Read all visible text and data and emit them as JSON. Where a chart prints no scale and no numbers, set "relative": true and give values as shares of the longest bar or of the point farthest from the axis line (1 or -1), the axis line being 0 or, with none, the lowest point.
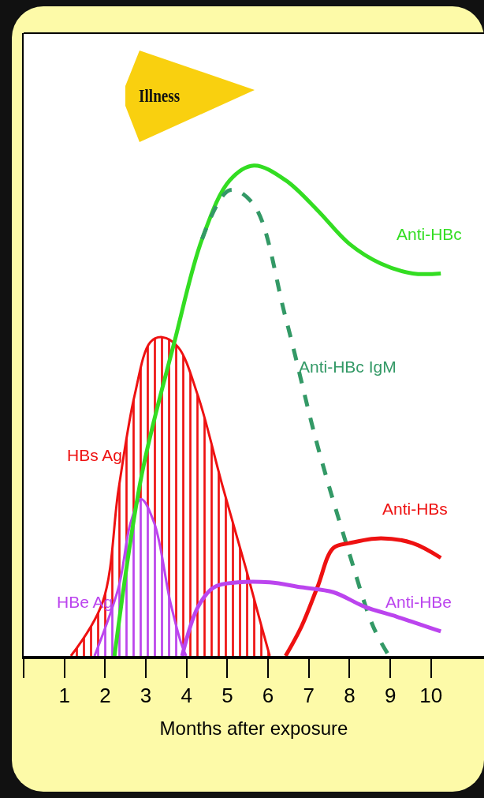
{
  "chart_data": {
    "type": "line",
    "relative": true,
    "xlabel": "Months after exposure",
    "xlim": [
      0,
      11.3
    ],
    "xticks": [
      {
        "value": 0,
        "label": null
      },
      1,
      2,
      3,
      4,
      5,
      6,
      7,
      8,
      9,
      10
    ],
    "grid": false,
    "marker": "none",
    "annotations": [
      "Illness"
    ],
    "series": [
      {
        "name": "HBs Ag",
        "type": "area",
        "color": "#ee1111",
        "x": [
          1.16,
          1.94,
          2.33,
          2.72,
          3.11,
          3.4,
          3.79,
          4.28,
          4.87,
          5.45,
          5.84,
          6.04
        ],
        "values": [
          0,
          0.11,
          0.34,
          0.53,
          0.64,
          0.65,
          0.63,
          0.53,
          0.35,
          0.18,
          0.06,
          0
        ]
      },
      {
        "name": "HBe Ag",
        "type": "area",
        "color": "#bb44ee",
        "x": [
          1.74,
          2.33,
          2.62,
          2.88,
          3.21,
          3.6,
          3.89,
          3.99
        ],
        "values": [
          0,
          0.14,
          0.27,
          0.32,
          0.27,
          0.11,
          0.02,
          0
        ]
      },
      {
        "name": "Anti-HBc",
        "color": "#33dd22",
        "line_style": "solid",
        "x": [
          2.23,
          2.9,
          3.7,
          4.38,
          5.06,
          5.65,
          6.43,
          7.2,
          8.0,
          8.77,
          9.55,
          10.24
        ],
        "values": [
          0,
          0.37,
          0.64,
          0.85,
          0.97,
          1.0,
          0.97,
          0.91,
          0.84,
          0.8,
          0.78,
          0.78
        ]
      },
      {
        "name": "Anti-HBc IgM",
        "color": "#339966",
        "line_style": "dashed",
        "x": [
          4.38,
          5.06,
          5.65,
          6.43,
          7.21,
          7.99,
          8.58,
          8.97
        ],
        "values": [
          0.85,
          0.95,
          0.92,
          0.69,
          0.43,
          0.21,
          0.06,
          0
        ]
      },
      {
        "name": "Anti-HBs",
        "color": "#ee1111",
        "line_style": "solid",
        "x": [
          6.43,
          6.82,
          7.21,
          7.6,
          7.99,
          8.77,
          9.55,
          10.24
        ],
        "values": [
          0,
          0.06,
          0.14,
          0.22,
          0.23,
          0.24,
          0.23,
          0.2
        ]
      },
      {
        "name": "Anti-HBe",
        "color": "#bb44ee",
        "line_style": "solid",
        "x": [
          3.89,
          4.28,
          4.67,
          5.26,
          6.04,
          6.82,
          7.6,
          8.38,
          9.16,
          10.24
        ],
        "values": [
          0,
          0.1,
          0.14,
          0.15,
          0.15,
          0.14,
          0.13,
          0.1,
          0.08,
          0.05
        ]
      }
    ]
  }
}
